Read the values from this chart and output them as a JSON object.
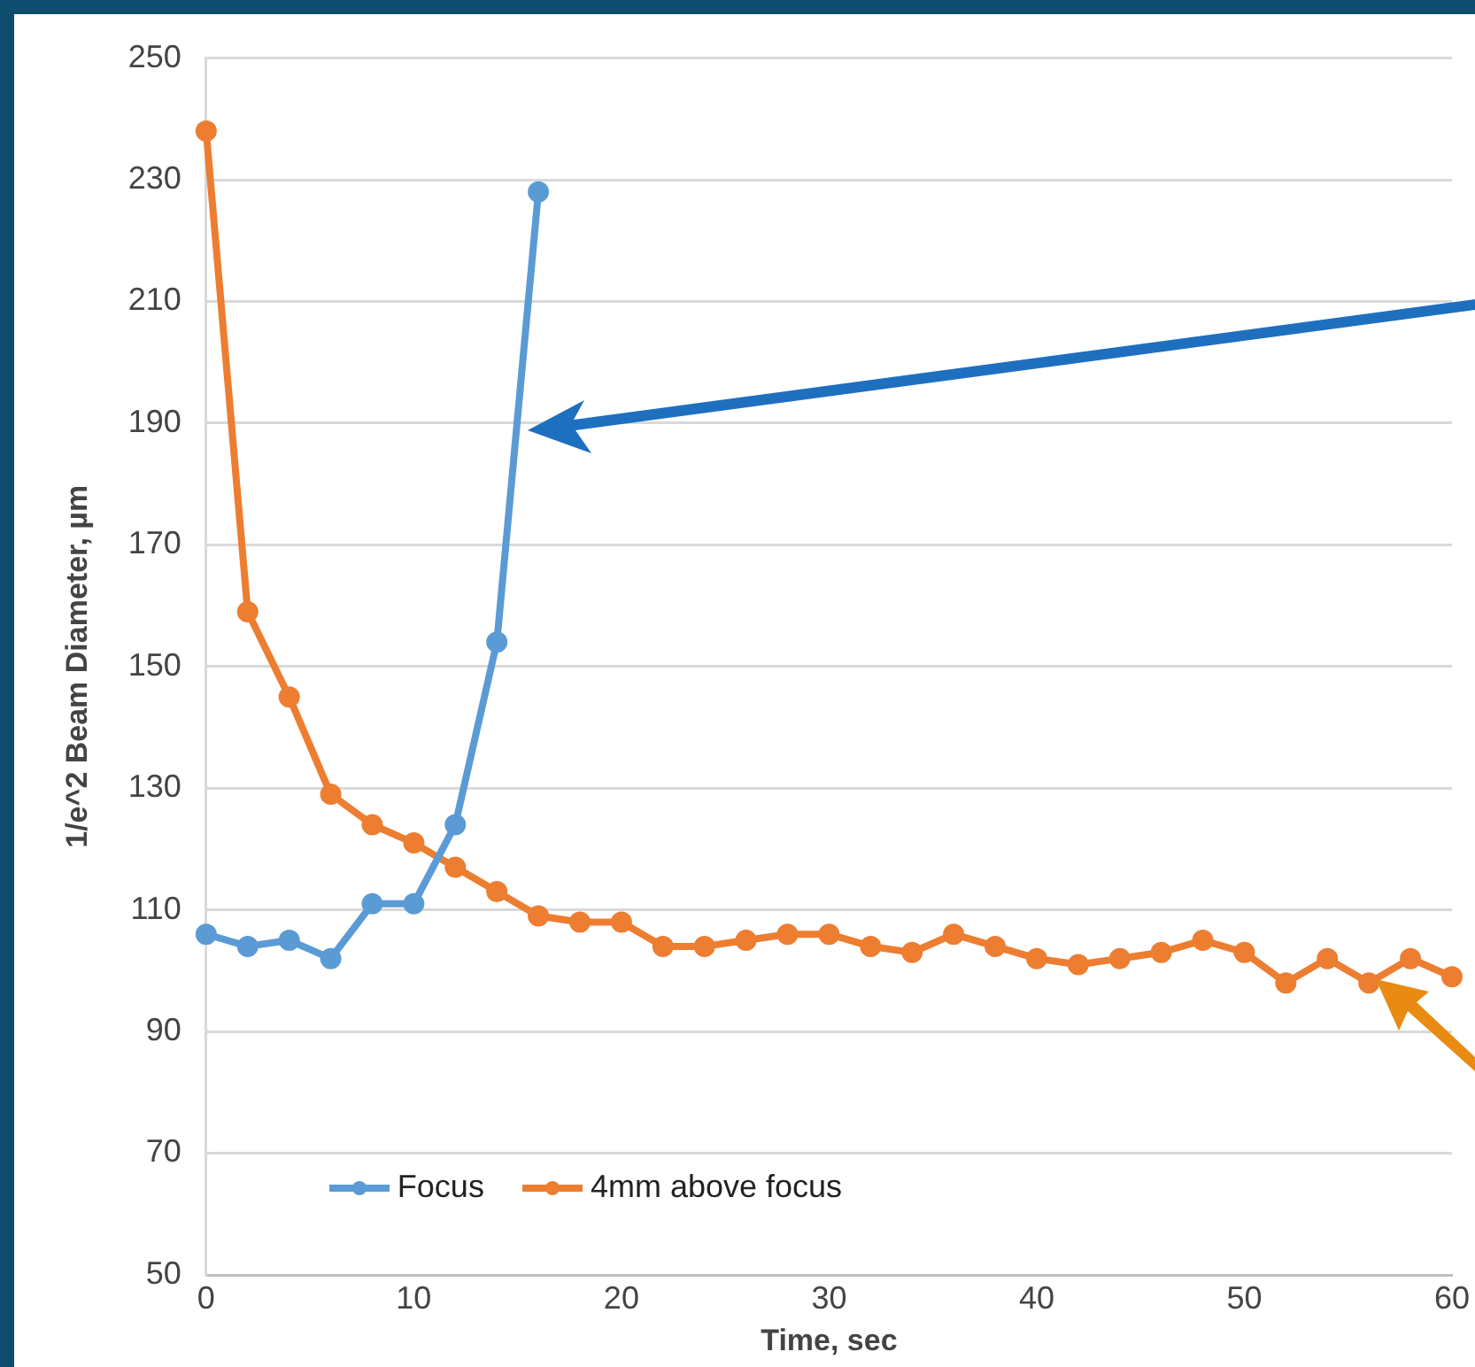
{
  "chart_data": {
    "type": "line",
    "xlabel": "Time, sec",
    "ylabel": "1/e^2 Beam Diameter, µm",
    "xlim": [
      0,
      60
    ],
    "xticks": [
      0,
      10,
      20,
      30,
      40,
      50,
      60
    ],
    "ylim": [
      50,
      250
    ],
    "yticks": [
      50,
      70,
      90,
      110,
      130,
      150,
      170,
      190,
      210,
      230,
      250
    ],
    "grid": "y",
    "legend": "bottom left",
    "marker": "circle",
    "line_style": "solid",
    "series": [
      {
        "name": "Focus",
        "color": "#5b9bd5",
        "x": [
          0,
          2,
          4,
          6,
          8,
          10,
          12,
          14,
          16
        ],
        "values": [
          106,
          104,
          105,
          102,
          111,
          111,
          124,
          154,
          228
        ]
      },
      {
        "name": "4mm above focus",
        "color": "#ed7d31",
        "x": [
          0,
          2,
          4,
          6,
          8,
          10,
          12,
          14,
          16,
          18,
          20,
          22,
          24,
          26,
          28,
          30,
          32,
          34,
          36,
          38,
          40,
          42,
          44,
          46,
          48,
          50,
          52,
          54,
          56,
          58,
          60
        ],
        "values": [
          238,
          159,
          145,
          129,
          124,
          121,
          117,
          113,
          109,
          108,
          108,
          104,
          104,
          105,
          106,
          106,
          104,
          103,
          106,
          104,
          102,
          101,
          102,
          103,
          105,
          103,
          98,
          102,
          98,
          102,
          99
        ]
      }
    ]
  }
}
